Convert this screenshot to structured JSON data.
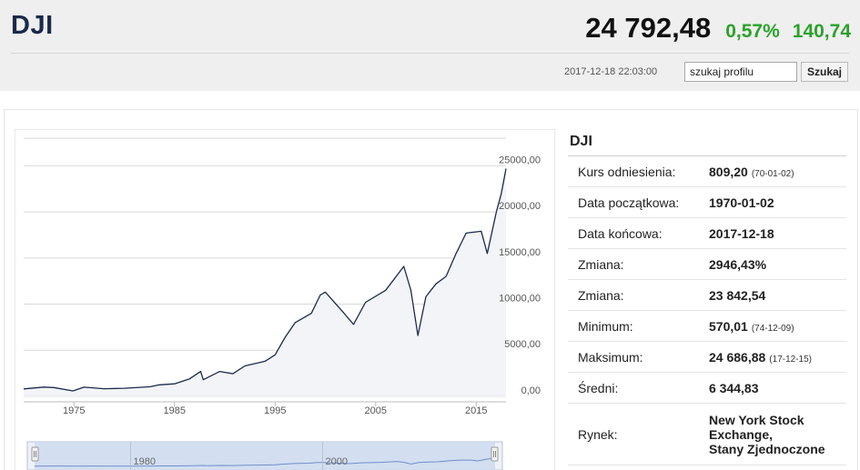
{
  "header": {
    "symbol": "DJI",
    "price": "24 792,48",
    "change_pct": "0,57%",
    "change_abs": "140,74",
    "timestamp": "2017-12-18 22:03:00",
    "search_value": "szukaj profilu",
    "search_button": "Szukaj",
    "positive_color": "#2aa22a"
  },
  "info": {
    "title": "DJI",
    "rows": [
      {
        "label": "Kurs odniesienia:",
        "value": "809,20",
        "note": "(70-01-02)"
      },
      {
        "label": "Data początkowa:",
        "value": "1970-01-02",
        "note": ""
      },
      {
        "label": "Data końcowa:",
        "value": "2017-12-18",
        "note": ""
      },
      {
        "label": "Zmiana:",
        "value": "2946,43%",
        "note": ""
      },
      {
        "label": "Zmiana:",
        "value": "23 842,54",
        "note": ""
      },
      {
        "label": "Minimum:",
        "value": "570,01",
        "note": "(74-12-09)"
      },
      {
        "label": "Maksimum:",
        "value": "24 686,88",
        "note": "(17-12-15)"
      },
      {
        "label": "Średni:",
        "value": "6 344,83",
        "note": ""
      }
    ],
    "market": {
      "label": "Rynek:",
      "lines": [
        "New York Stock",
        "Exchange,",
        "Stany Zjednoczone"
      ]
    }
  },
  "chart_data": {
    "type": "line",
    "title": "",
    "xlabel": "",
    "ylabel": "",
    "line_color": "#1b2a4a",
    "fill_color": "#f3f4f7",
    "x_ticks": [
      "1975",
      "1985",
      "1995",
      "2005",
      "2015"
    ],
    "y_ticks": [
      "0,00",
      "5000,00",
      "10000,00",
      "15000,00",
      "20000,00",
      "25000,00"
    ],
    "xlim": [
      1970.0,
      2017.96
    ],
    "ylim": [
      -500,
      28000
    ],
    "grid": true,
    "series": [
      {
        "x": [
          1970.0,
          1972.0,
          1973.0,
          1974.9,
          1976.0,
          1978.0,
          1980.0,
          1982.6,
          1983.5,
          1985.0,
          1986.5,
          1987.6,
          1987.85,
          1989.5,
          1990.8,
          1992.0,
          1994.0,
          1995.0,
          1996.0,
          1997.0,
          1998.6,
          1999.5,
          2000.0,
          2001.7,
          2002.8,
          2004.0,
          2006.0,
          2007.8,
          2008.5,
          2009.2,
          2010.0,
          2011.0,
          2012.0,
          2013.0,
          2014.0,
          2015.5,
          2016.1,
          2016.6,
          2017.0,
          2017.5,
          2017.96
        ],
        "y": [
          800,
          1000,
          950,
          580,
          990,
          820,
          870,
          1040,
          1250,
          1350,
          1900,
          2700,
          1800,
          2700,
          2450,
          3300,
          3800,
          4500,
          6400,
          8000,
          9000,
          11000,
          11300,
          9200,
          7800,
          10200,
          11500,
          14100,
          11500,
          6600,
          10800,
          12200,
          13000,
          15500,
          17700,
          17900,
          15500,
          18000,
          20000,
          22000,
          24700
        ]
      }
    ],
    "navigator": {
      "x_ticks": [
        "1980",
        "2000"
      ],
      "xlim": [
        1970.0,
        2017.96
      ]
    }
  }
}
